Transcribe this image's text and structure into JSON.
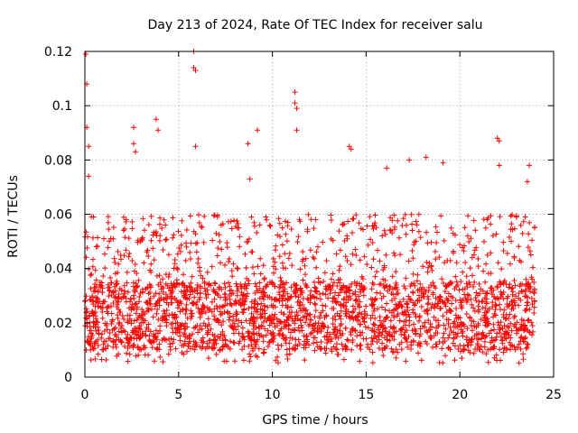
{
  "chart_data": {
    "type": "scatter",
    "title": "Day 213 of 2024, Rate Of TEC Index for receiver salu",
    "xlabel": "GPS time / hours",
    "ylabel": "ROTI / TECUs",
    "xlim": [
      0,
      25
    ],
    "ylim": [
      0,
      0.12
    ],
    "x_ticks": [
      0,
      5,
      10,
      15,
      20,
      25
    ],
    "x_tick_labels": [
      "0",
      "5",
      "10",
      "15",
      "20",
      "25"
    ],
    "y_ticks": [
      0,
      0.02,
      0.04,
      0.06,
      0.08,
      0.1,
      0.12
    ],
    "y_tick_labels": [
      "0",
      "0.02",
      "0.04",
      "0.06",
      "0.08",
      "0.1",
      "0.12"
    ],
    "grid": true,
    "marker": "+",
    "series": [
      {
        "name": "ROTI",
        "color": "#ff0000",
        "typical_range": [
          0.01,
          0.035
        ],
        "x_extent": [
          0,
          24
        ],
        "notable_points": [
          {
            "x": 0.05,
            "y": 0.119
          },
          {
            "x": 0.1,
            "y": 0.108
          },
          {
            "x": 0.1,
            "y": 0.092
          },
          {
            "x": 0.2,
            "y": 0.085
          },
          {
            "x": 0.2,
            "y": 0.074
          },
          {
            "x": 2.6,
            "y": 0.092
          },
          {
            "x": 2.6,
            "y": 0.086
          },
          {
            "x": 2.7,
            "y": 0.083
          },
          {
            "x": 3.8,
            "y": 0.095
          },
          {
            "x": 3.9,
            "y": 0.091
          },
          {
            "x": 5.8,
            "y": 0.12
          },
          {
            "x": 5.8,
            "y": 0.114
          },
          {
            "x": 5.9,
            "y": 0.113
          },
          {
            "x": 5.9,
            "y": 0.085
          },
          {
            "x": 8.7,
            "y": 0.086
          },
          {
            "x": 8.8,
            "y": 0.073
          },
          {
            "x": 9.2,
            "y": 0.091
          },
          {
            "x": 11.2,
            "y": 0.105
          },
          {
            "x": 11.2,
            "y": 0.101
          },
          {
            "x": 11.3,
            "y": 0.099
          },
          {
            "x": 11.3,
            "y": 0.091
          },
          {
            "x": 14.1,
            "y": 0.085
          },
          {
            "x": 14.2,
            "y": 0.084
          },
          {
            "x": 16.1,
            "y": 0.077
          },
          {
            "x": 17.3,
            "y": 0.08
          },
          {
            "x": 18.2,
            "y": 0.081
          },
          {
            "x": 19.1,
            "y": 0.079
          },
          {
            "x": 22.0,
            "y": 0.088
          },
          {
            "x": 22.1,
            "y": 0.087
          },
          {
            "x": 22.1,
            "y": 0.078
          },
          {
            "x": 23.7,
            "y": 0.078
          },
          {
            "x": 23.6,
            "y": 0.072
          }
        ]
      }
    ]
  }
}
